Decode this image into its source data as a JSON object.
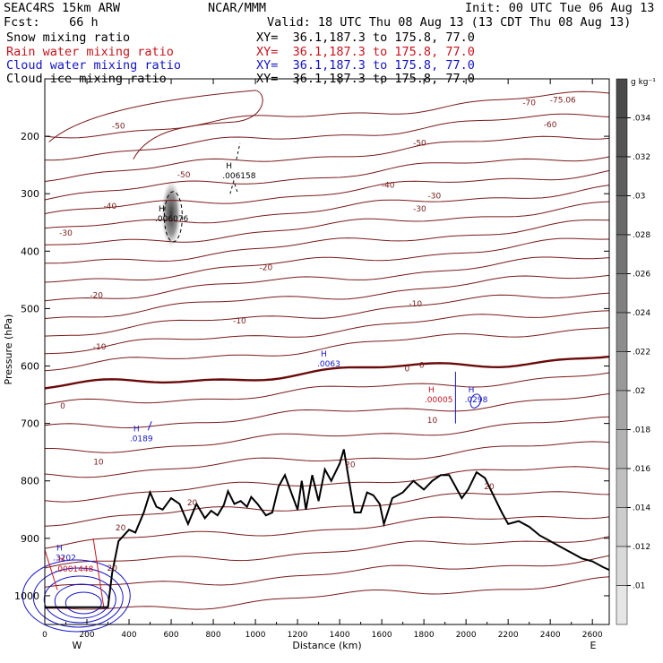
{
  "header": {
    "model": "SEAC4RS 15km ARW",
    "org": "NCAR/MMM",
    "init": "Init: 00 UTC Tue 06 Aug 13",
    "fcst": "Fcst:    66 h",
    "valid": "Valid: 18 UTC Thu 08 Aug 13 (13 CDT Thu 08 Aug 13)",
    "fields": [
      {
        "name": "Snow mixing ratio",
        "xy": "XY=  36.1,187.3 to 175.8, 77.0",
        "color": "#000000"
      },
      {
        "name": "Rain water mixing ratio",
        "xy": "XY=  36.1,187.3 to 175.8, 77.0",
        "color": "#c8141e"
      },
      {
        "name": "Cloud water mixing ratio",
        "xy": "XY=  36.1,187.3 to 175.8, 77.0",
        "color": "#1414c8"
      },
      {
        "name": "Cloud ice mixing ratio",
        "xy": "XY=  36.1,187.3 to 175.8, 77.0",
        "color": "#000000"
      }
    ]
  },
  "chart_data": {
    "type": "contour-cross-section",
    "xlabel": "Distance (km)",
    "ylabel": "Pressure (hPa)",
    "xlim": [
      0,
      2680
    ],
    "ylim": [
      1050,
      100
    ],
    "x_ticks": [
      0,
      200,
      400,
      600,
      800,
      1000,
      1200,
      1400,
      1600,
      1800,
      2000,
      2200,
      2400,
      2600
    ],
    "y_ticks": [
      1000,
      900,
      800,
      700,
      600,
      500,
      400,
      300,
      200
    ],
    "y_tick_labels": [
      "1000",
      "900",
      "800",
      "700",
      "600",
      "500",
      "400",
      "300",
      "200"
    ],
    "x_tick_labels": [
      "0",
      "200",
      "400",
      "600",
      "800",
      "1000",
      "1200",
      "1400",
      "1600",
      "1800",
      "2000",
      "2200",
      "2400",
      "2600"
    ],
    "end_labels": {
      "left": "W",
      "right": "E"
    },
    "colorbar": {
      "unit": "g kg⁻¹",
      "labels": [
        ".034",
        ".032",
        ".03",
        ".028",
        ".026",
        ".024",
        ".022",
        ".02",
        ".018",
        ".016",
        ".014",
        ".012",
        ".01"
      ],
      "colors": [
        "#4a4a4a",
        "#545454",
        "#5e5e5e",
        "#696969",
        "#747474",
        "#808080",
        "#8c8c8c",
        "#999999",
        "#a6a6a6",
        "#b3b3b3",
        "#c0c0c0",
        "#cccccc",
        "#d9d9d9",
        "#e6e6e6"
      ]
    },
    "temperature_contour_color": "#7a1a1a",
    "zero_contour_color": "#6a0a0a",
    "temperature_labels": [
      {
        "text": "-70",
        "x": 2300,
        "p": 140
      },
      {
        "text": "-75.06",
        "x": 2460,
        "p": 135
      },
      {
        "text": "-50",
        "x": 350,
        "p": 180
      },
      {
        "text": "-60",
        "x": 2400,
        "p": 178
      },
      {
        "text": "-50",
        "x": 1780,
        "p": 210
      },
      {
        "text": "-50",
        "x": 660,
        "p": 265
      },
      {
        "text": "-40",
        "x": 1630,
        "p": 283
      },
      {
        "text": "-40",
        "x": 310,
        "p": 320
      },
      {
        "text": "-30",
        "x": 1780,
        "p": 325
      },
      {
        "text": "-30",
        "x": 1850,
        "p": 302
      },
      {
        "text": "-20",
        "x": 1050,
        "p": 427
      },
      {
        "text": "-20",
        "x": 245,
        "p": 475
      },
      {
        "text": "-10",
        "x": 1760,
        "p": 490
      },
      {
        "text": "-10",
        "x": 925,
        "p": 520
      },
      {
        "text": "-10",
        "x": 260,
        "p": 565
      },
      {
        "text": "-30",
        "x": 100,
        "p": 367
      },
      {
        "text": "0",
        "x": 1720,
        "p": 603
      },
      {
        "text": "0",
        "x": 1790,
        "p": 597
      },
      {
        "text": "0",
        "x": 85,
        "p": 668
      },
      {
        "text": "10",
        "x": 1840,
        "p": 693
      },
      {
        "text": "10",
        "x": 255,
        "p": 765
      },
      {
        "text": "20",
        "x": 1450,
        "p": 770
      },
      {
        "text": "20",
        "x": 700,
        "p": 836
      },
      {
        "text": "20",
        "x": 2110,
        "p": 808
      },
      {
        "text": "20",
        "x": 360,
        "p": 880
      },
      {
        "text": "20",
        "x": 320,
        "p": 950
      }
    ],
    "field_maxima": [
      {
        "text": ".006076",
        "x": 600,
        "p": 345,
        "color": "#000000"
      },
      {
        "text": ".006158",
        "x": 920,
        "p": 270,
        "color": "#000000"
      },
      {
        "text": ".0063",
        "x": 1370,
        "p": 598,
        "color": "#1414c8"
      },
      {
        "text": ".00005",
        "x": 1880,
        "p": 660,
        "color": "#c8141e"
      },
      {
        "text": ".0298",
        "x": 2070,
        "p": 660,
        "color": "#1414c8"
      },
      {
        "text": ".0189",
        "x": 480,
        "p": 728,
        "color": "#1414c8"
      },
      {
        "text": ".3202",
        "x": 115,
        "p": 935,
        "color": "#1414c8"
      },
      {
        "text": ".0001448",
        "x": 125,
        "p": 955,
        "color": "#c8141e"
      }
    ],
    "terrain": [
      [
        0,
        1020
      ],
      [
        300,
        1020
      ],
      [
        320,
        960
      ],
      [
        350,
        905
      ],
      [
        400,
        885
      ],
      [
        430,
        890
      ],
      [
        470,
        855
      ],
      [
        500,
        820
      ],
      [
        530,
        845
      ],
      [
        560,
        850
      ],
      [
        600,
        830
      ],
      [
        640,
        840
      ],
      [
        680,
        875
      ],
      [
        720,
        840
      ],
      [
        760,
        865
      ],
      [
        790,
        852
      ],
      [
        820,
        860
      ],
      [
        850,
        842
      ],
      [
        870,
        818
      ],
      [
        900,
        840
      ],
      [
        930,
        835
      ],
      [
        960,
        845
      ],
      [
        980,
        828
      ],
      [
        1010,
        840
      ],
      [
        1050,
        860
      ],
      [
        1080,
        855
      ],
      [
        1110,
        810
      ],
      [
        1140,
        790
      ],
      [
        1170,
        820
      ],
      [
        1200,
        850
      ],
      [
        1220,
        800
      ],
      [
        1240,
        850
      ],
      [
        1270,
        790
      ],
      [
        1300,
        835
      ],
      [
        1330,
        780
      ],
      [
        1360,
        800
      ],
      [
        1400,
        770
      ],
      [
        1420,
        745
      ],
      [
        1440,
        790
      ],
      [
        1470,
        855
      ],
      [
        1500,
        855
      ],
      [
        1530,
        820
      ],
      [
        1560,
        825
      ],
      [
        1590,
        840
      ],
      [
        1610,
        875
      ],
      [
        1650,
        830
      ],
      [
        1700,
        820
      ],
      [
        1750,
        800
      ],
      [
        1800,
        815
      ],
      [
        1840,
        800
      ],
      [
        1880,
        790
      ],
      [
        1920,
        790
      ],
      [
        1950,
        810
      ],
      [
        1980,
        830
      ],
      [
        2010,
        815
      ],
      [
        2050,
        785
      ],
      [
        2090,
        795
      ],
      [
        2130,
        825
      ],
      [
        2170,
        855
      ],
      [
        2200,
        875
      ],
      [
        2250,
        870
      ],
      [
        2300,
        880
      ],
      [
        2350,
        895
      ],
      [
        2400,
        905
      ],
      [
        2450,
        915
      ],
      [
        2500,
        925
      ],
      [
        2550,
        935
      ],
      [
        2600,
        940
      ],
      [
        2650,
        950
      ],
      [
        2680,
        955
      ]
    ]
  }
}
